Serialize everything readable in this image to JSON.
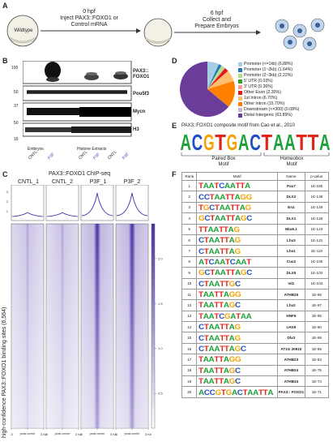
{
  "panels": {
    "A": "A",
    "B": "B",
    "C": "C",
    "D": "D",
    "E": "E",
    "F": "F"
  },
  "panelA": {
    "wildtype": "Wildtype",
    "step1_time": "0 hpf",
    "step1_text1": "Inject PAX3::FOXO1 or",
    "step1_text2": "Control mRNA",
    "step2_time": "6 hpf",
    "step2_text1": "Collect and",
    "step2_text2": "Prepare Embryos"
  },
  "panelB": {
    "rows": [
      "PAX3::",
      "FOXO1",
      "Pou5f3",
      "Mycn",
      "H3"
    ],
    "markers": [
      "100",
      "50",
      "37",
      "50",
      "15"
    ],
    "lanes": [
      "CNTL",
      "P3F",
      "CNTL",
      "P3F",
      "CNTL",
      "P3F"
    ],
    "groups": [
      "Embryos",
      "Histone Extracts"
    ]
  },
  "panelC": {
    "title": "PAX3::FOXO1 ChIP-seq",
    "tracks": [
      "CNTL_1",
      "CNTL_2",
      "P3F_1",
      "P3F_2"
    ],
    "ylabel": "high-confidence PAX3::FOXO1 binding sites (6,564)",
    "profile_ticks": [
      "3",
      "2",
      "1"
    ],
    "scale_ticks": [
      "2.0",
      "1.5",
      "1.0",
      "0.5"
    ],
    "x_ticks": [
      "-3",
      "peak center",
      "3 Kb"
    ]
  },
  "panelD": {
    "chart_data": {
      "type": "pie",
      "categories": [
        "Promoter (<=1kb)",
        "Promoter (1~2kb)",
        "Promoter (2~3kb)",
        "5' UTR",
        "3' UTR",
        "Other Exon",
        "1st Intron",
        "Other Intron",
        "Downstream (<=300)",
        "Distal Intergenic"
      ],
      "values": [
        6.88,
        1.64,
        2.22,
        0.03,
        0.36,
        2.3,
        6.7,
        15.7,
        0.08,
        63.89
      ],
      "legend": [
        "Promoter (<=1kb) (6.88%)",
        "Promoter (1~2kb) (1.64%)",
        "Promoter (2~3kb) (2.22%)",
        "5' UTR (0.03%)",
        "3' UTR (0.36%)",
        "Other Exon (2.30%)",
        "1st Intron (6.70%)",
        "Other Intron (15.70%)",
        "Downstream (<=300) (0.08%)",
        "Distal Intergenic (63.89%)"
      ],
      "colors": [
        "#a6cee3",
        "#1f78b4",
        "#b2df8a",
        "#33a02c",
        "#fb9a99",
        "#e31a1c",
        "#fdbf6f",
        "#ff7f00",
        "#cab2d6",
        "#6a3d9a"
      ],
      "legend_position": "right"
    }
  },
  "panelE": {
    "title": "PAX3::FOXO1 composite motif from Cao et al., 2010",
    "sequence": "ACGTGACTAATTA",
    "label1": "Paired Box",
    "label1b": "Motif",
    "label2": "Homeobox",
    "label2b": "Motif"
  },
  "panelF": {
    "headers": [
      "Rank",
      "Motif",
      "Name",
      "p-value"
    ],
    "rows": [
      {
        "rank": "1",
        "motif": "TAATCAATTA",
        "name": "Pax7",
        "p": "1E-185"
      },
      {
        "rank": "2",
        "motif": "CCTAATTAGG",
        "name": "DLX2",
        "p": "1E-138"
      },
      {
        "rank": "3",
        "motif": "TGCTAATTAG",
        "name": "En1",
        "p": "1E-129"
      },
      {
        "rank": "4",
        "motif": "GCTAATTAGC",
        "name": "DLX1",
        "p": "1E-126"
      },
      {
        "rank": "5",
        "motif": "TTAATTAG",
        "name": "Nkx6.1",
        "p": "1E-123"
      },
      {
        "rank": "6",
        "motif": "CTAATTAG",
        "name": "Lhx3",
        "p": "1E-122"
      },
      {
        "rank": "7",
        "motif": "CTAATTAG",
        "name": "Lhx1",
        "p": "1E-110"
      },
      {
        "rank": "8",
        "motif": "ATCAATCAAT",
        "name": "Cux2",
        "p": "1E-105"
      },
      {
        "rank": "9",
        "motif": "GCTAATTAGC",
        "name": "DLX5",
        "p": "1E-103"
      },
      {
        "rank": "10",
        "motif": "CTAATTGC",
        "name": "Isl1",
        "p": "1E-103"
      },
      {
        "rank": "11",
        "motif": "TAATTAGG",
        "name": "ATHB25",
        "p": "1E-98"
      },
      {
        "rank": "12",
        "motif": "TAATTAGC",
        "name": "Lhx2",
        "p": "1E-97"
      },
      {
        "rank": "13",
        "motif": "TAATCGATAA",
        "name": "HNF6",
        "p": "1E-95"
      },
      {
        "rank": "14",
        "motif": "CTAATTAG",
        "name": "LHX9",
        "p": "1E-90"
      },
      {
        "rank": "15",
        "motif": "CTAATTAG",
        "name": "Dlx3",
        "p": "1E-89"
      },
      {
        "rank": "16",
        "motif": "CTAATTAGC",
        "name": "AT1G 20910",
        "p": "1E-85"
      },
      {
        "rank": "17",
        "motif": "TAATTAGG",
        "name": "ATHB23",
        "p": "1E-83"
      },
      {
        "rank": "18",
        "motif": "TAATTAGC",
        "name": "ATHB24",
        "p": "1E-75"
      },
      {
        "rank": "19",
        "motif": "TAATTAGC",
        "name": "ATHB34",
        "p": "1E-74"
      },
      {
        "rank": "20",
        "motif": "ACCGTGACTAATTA",
        "name": "PAX3:: FOXO1",
        "p": "1E-71"
      }
    ]
  },
  "colors": {
    "A": "#1fa23c",
    "C": "#1f4fc4",
    "G": "#f5a200",
    "T": "#e0261b",
    "P3F_label": "#5b3bb5",
    "heatmap": "#4b2fa5"
  }
}
